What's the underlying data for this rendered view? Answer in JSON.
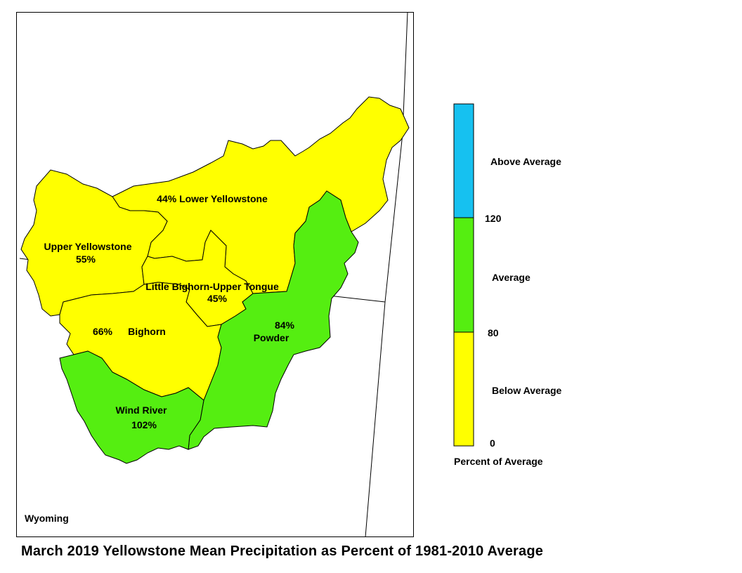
{
  "basins": [
    {
      "id": "lower-yellowstone",
      "name": "Lower Yellowstone",
      "percent": "44%",
      "category": "below"
    },
    {
      "id": "upper-yellowstone",
      "name": "Upper Yellowstone",
      "percent": "55%",
      "category": "below"
    },
    {
      "id": "little-bighorn-upper-tongue",
      "name": "Little Bighorn-Upper Tongue",
      "percent": "45%",
      "category": "below"
    },
    {
      "id": "bighorn",
      "name": "Bighorn",
      "percent": "66%",
      "category": "below"
    },
    {
      "id": "powder",
      "name": "Powder",
      "percent": "84%",
      "category": "average"
    },
    {
      "id": "wind-river",
      "name": "Wind River",
      "percent": "102%",
      "category": "average"
    }
  ],
  "legend": {
    "title": "Percent of Average",
    "categories": [
      {
        "label": "Above Average",
        "color": "#16c1f0"
      },
      {
        "label": "Average",
        "color": "#55ee11"
      },
      {
        "label": "Below Average",
        "color": "#ffff00"
      }
    ],
    "ticks": [
      "120",
      "80",
      "0"
    ]
  },
  "state_label": "Wyoming",
  "title": "March 2019 Yellowstone Mean Precipitation as Percent of 1981-2010 Average",
  "colors": {
    "below": "#ffff00",
    "average": "#55ee11",
    "above": "#16c1f0"
  }
}
